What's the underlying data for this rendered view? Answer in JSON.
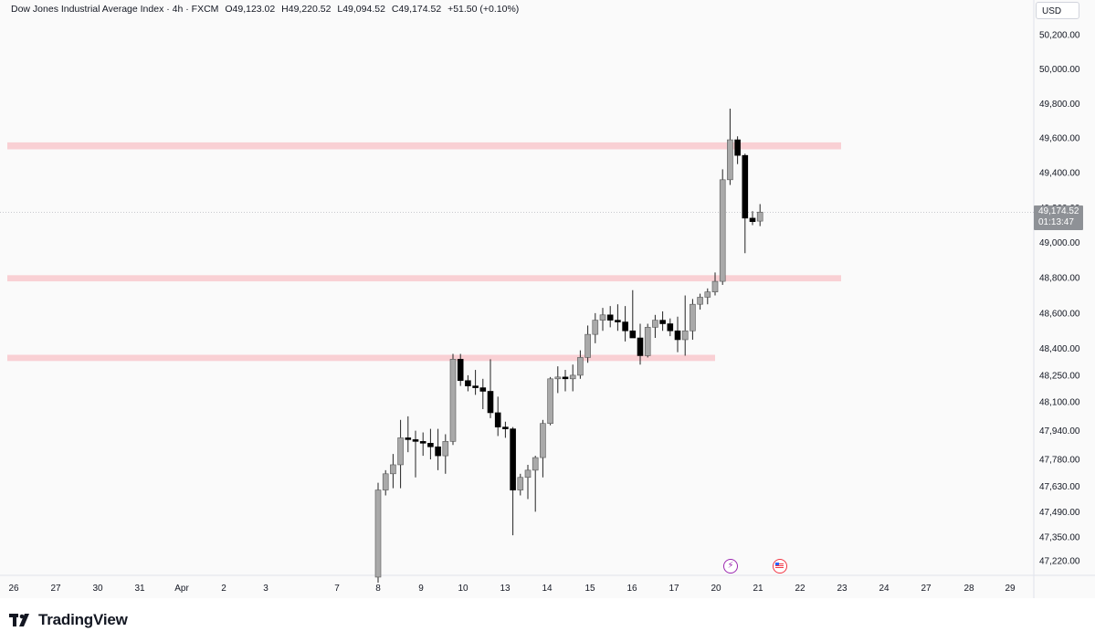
{
  "header": {
    "title": "Dow Jones Industrial Average Index · 4h · FXCM",
    "open": "O49,123.02",
    "high": "H49,220.52",
    "low": "L49,094.52",
    "close": "C49,174.52",
    "change": "+51.50 (+0.10%)"
  },
  "currency": "USD",
  "current_price": {
    "value": "49,174.52",
    "countdown": "01:13:47"
  },
  "brand": {
    "name": "TradingView"
  },
  "colors": {
    "bull_body": "#a9a9a9",
    "bear_body": "#000000",
    "wick": "#222222",
    "zone": "#f8c8cc",
    "price_line": "#9598a1"
  },
  "events": [
    {
      "icon": "lightning-icon"
    },
    {
      "icon": "us-flag-icon"
    }
  ],
  "chart_data": {
    "type": "candlestick",
    "title": "Dow Jones Industrial Average Index · 4h · FXCM",
    "ylim": [
      47150,
      50300
    ],
    "y_scale": "log",
    "y_ticks": [
      50200,
      50000,
      49800,
      49600,
      49400,
      49200,
      49000,
      48800,
      48600,
      48400,
      48250,
      48100,
      47940,
      47780,
      47630,
      47490,
      47350,
      47220
    ],
    "y_tick_labels": [
      "50,200.00",
      "50,000.00",
      "49,800.00",
      "49,600.00",
      "49,400.00",
      "49,200.00",
      "49,000.00",
      "48,800.00",
      "48,600.00",
      "48,400.00",
      "48,250.00",
      "48,100.00",
      "47,940.00",
      "47,780.00",
      "47,630.00",
      "47,490.00",
      "47,350.00",
      "47,220.00"
    ],
    "x_tick_labels": [
      "26",
      "27",
      "30",
      "31",
      "Apr",
      "2",
      "3",
      "7",
      "8",
      "9",
      "10",
      "13",
      "14",
      "15",
      "16",
      "17",
      "20",
      "21",
      "22",
      "23",
      "24",
      "27",
      "28",
      "29"
    ],
    "zones": [
      {
        "low": 49535,
        "high": 49575,
        "span": "full"
      },
      {
        "low": 48780,
        "high": 48815,
        "span": "full"
      },
      {
        "low": 48330,
        "high": 48365,
        "span": "to-20"
      }
    ],
    "candles": [
      {
        "o": 47130,
        "h": 47650,
        "l": 47100,
        "c": 47610
      },
      {
        "o": 47610,
        "h": 47720,
        "l": 47580,
        "c": 47700
      },
      {
        "o": 47700,
        "h": 47810,
        "l": 47620,
        "c": 47750
      },
      {
        "o": 47750,
        "h": 48000,
        "l": 47620,
        "c": 47900
      },
      {
        "o": 47900,
        "h": 48020,
        "l": 47820,
        "c": 47890
      },
      {
        "o": 47890,
        "h": 47940,
        "l": 47680,
        "c": 47880
      },
      {
        "o": 47880,
        "h": 47930,
        "l": 47800,
        "c": 47870
      },
      {
        "o": 47870,
        "h": 47950,
        "l": 47780,
        "c": 47850
      },
      {
        "o": 47850,
        "h": 47950,
        "l": 47720,
        "c": 47800
      },
      {
        "o": 47800,
        "h": 47920,
        "l": 47700,
        "c": 47880
      },
      {
        "o": 47880,
        "h": 48370,
        "l": 47860,
        "c": 48340
      },
      {
        "o": 48340,
        "h": 48370,
        "l": 48190,
        "c": 48220
      },
      {
        "o": 48220,
        "h": 48250,
        "l": 48160,
        "c": 48190
      },
      {
        "o": 48190,
        "h": 48280,
        "l": 48140,
        "c": 48180
      },
      {
        "o": 48180,
        "h": 48230,
        "l": 48060,
        "c": 48160
      },
      {
        "o": 48160,
        "h": 48340,
        "l": 48010,
        "c": 48040
      },
      {
        "o": 48040,
        "h": 48130,
        "l": 47910,
        "c": 47960
      },
      {
        "o": 47960,
        "h": 47990,
        "l": 47900,
        "c": 47950
      },
      {
        "o": 47950,
        "h": 47960,
        "l": 47360,
        "c": 47610
      },
      {
        "o": 47610,
        "h": 47700,
        "l": 47580,
        "c": 47680
      },
      {
        "o": 47680,
        "h": 47750,
        "l": 47560,
        "c": 47720
      },
      {
        "o": 47720,
        "h": 47800,
        "l": 47490,
        "c": 47790
      },
      {
        "o": 47790,
        "h": 48000,
        "l": 47680,
        "c": 47980
      },
      {
        "o": 47980,
        "h": 48240,
        "l": 47970,
        "c": 48230
      },
      {
        "o": 48230,
        "h": 48300,
        "l": 48150,
        "c": 48240
      },
      {
        "o": 48240,
        "h": 48280,
        "l": 48160,
        "c": 48230
      },
      {
        "o": 48230,
        "h": 48310,
        "l": 48160,
        "c": 48250
      },
      {
        "o": 48250,
        "h": 48390,
        "l": 48230,
        "c": 48350
      },
      {
        "o": 48350,
        "h": 48530,
        "l": 48320,
        "c": 48480
      },
      {
        "o": 48480,
        "h": 48600,
        "l": 48430,
        "c": 48560
      },
      {
        "o": 48560,
        "h": 48630,
        "l": 48500,
        "c": 48590
      },
      {
        "o": 48590,
        "h": 48640,
        "l": 48520,
        "c": 48560
      },
      {
        "o": 48560,
        "h": 48650,
        "l": 48500,
        "c": 48550
      },
      {
        "o": 48550,
        "h": 48640,
        "l": 48440,
        "c": 48500
      },
      {
        "o": 48500,
        "h": 48730,
        "l": 48470,
        "c": 48460
      },
      {
        "o": 48460,
        "h": 48540,
        "l": 48310,
        "c": 48360
      },
      {
        "o": 48360,
        "h": 48540,
        "l": 48350,
        "c": 48520
      },
      {
        "o": 48520,
        "h": 48590,
        "l": 48460,
        "c": 48560
      },
      {
        "o": 48560,
        "h": 48610,
        "l": 48500,
        "c": 48540
      },
      {
        "o": 48540,
        "h": 48570,
        "l": 48470,
        "c": 48500
      },
      {
        "o": 48500,
        "h": 48580,
        "l": 48380,
        "c": 48450
      },
      {
        "o": 48450,
        "h": 48700,
        "l": 48360,
        "c": 48500
      },
      {
        "o": 48500,
        "h": 48680,
        "l": 48450,
        "c": 48650
      },
      {
        "o": 48650,
        "h": 48710,
        "l": 48620,
        "c": 48690
      },
      {
        "o": 48690,
        "h": 48740,
        "l": 48650,
        "c": 48720
      },
      {
        "o": 48720,
        "h": 48830,
        "l": 48700,
        "c": 48780
      },
      {
        "o": 48780,
        "h": 49420,
        "l": 48760,
        "c": 49360
      },
      {
        "o": 49360,
        "h": 49770,
        "l": 49330,
        "c": 49590
      },
      {
        "o": 49590,
        "h": 49610,
        "l": 49450,
        "c": 49500
      },
      {
        "o": 49500,
        "h": 49510,
        "l": 48940,
        "c": 49140
      },
      {
        "o": 49140,
        "h": 49180,
        "l": 49100,
        "c": 49120
      },
      {
        "o": 49123.02,
        "h": 49220.52,
        "l": 49094.52,
        "c": 49174.52
      }
    ]
  }
}
